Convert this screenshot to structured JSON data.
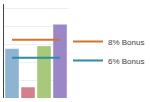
{
  "chart_data": {
    "type": "bar",
    "categories": [
      null,
      null,
      null,
      null
    ],
    "series": [
      {
        "type": "bar",
        "colors": [
          "#8eb4d4",
          "#d47f8a",
          "#a8c87a",
          "#9b87c8"
        ],
        "values": [
          55,
          12,
          58,
          82
        ]
      },
      {
        "type": "line",
        "name": "8% Bonus",
        "color": "#d4732a",
        "values": [
          65,
          65,
          65,
          65
        ]
      },
      {
        "type": "line",
        "name": "6% Bonus",
        "color": "#2a8fa0",
        "values": [
          45,
          45,
          45,
          45
        ]
      }
    ],
    "ylim": [
      0,
      105
    ],
    "yticks": [
      20,
      40,
      60,
      80,
      100
    ],
    "grid": true,
    "legend": "right",
    "tick_labels": false
  }
}
